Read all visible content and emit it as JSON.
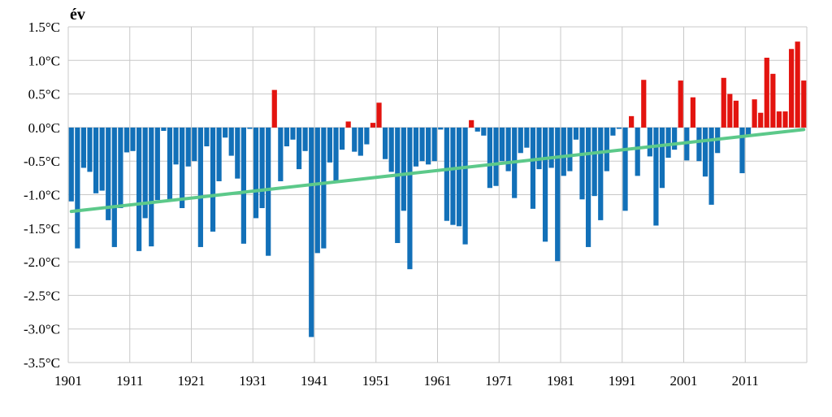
{
  "chart_data": {
    "type": "bar",
    "title": "év",
    "xlabel": "",
    "ylabel": "",
    "ylim": [
      -3.5,
      1.5
    ],
    "yticks": [
      1.5,
      1.0,
      0.5,
      0.0,
      -0.5,
      -1.0,
      -1.5,
      -2.0,
      -2.5,
      -3.0,
      -3.5
    ],
    "ytick_labels": [
      "1.5°C",
      "1.0°C",
      "0.5°C",
      "0.0°C",
      "-0.5°C",
      "-1.0°C",
      "-1.5°C",
      "-2.0°C",
      "-2.5°C",
      "-3.0°C",
      "-3.5°C"
    ],
    "xticks": [
      "1901",
      "1911",
      "1921",
      "1931",
      "1941",
      "1951",
      "1961",
      "1971",
      "1981",
      "1991",
      "2001",
      "2011"
    ],
    "grid": true,
    "x_start": 1901,
    "x_end": 2020,
    "positive_color": "#e3140f",
    "negative_color": "#1270b8",
    "trend_color": "#5cc98a",
    "trend": {
      "x": [
        1901,
        2020
      ],
      "y": [
        -1.25,
        -0.03
      ]
    },
    "values": [
      -1.1,
      -1.8,
      -0.6,
      -0.66,
      -0.98,
      -0.94,
      -1.38,
      -1.78,
      -1.2,
      -0.37,
      -0.35,
      -1.84,
      -1.35,
      -1.77,
      -1.08,
      -0.05,
      -1.08,
      -0.55,
      -1.2,
      -0.58,
      -0.5,
      -1.78,
      -0.28,
      -1.55,
      -0.8,
      -0.15,
      -0.42,
      -0.76,
      -1.73,
      -0.02,
      -1.35,
      -1.2,
      -1.91,
      0.56,
      -0.8,
      -0.28,
      -0.18,
      -0.62,
      -0.35,
      -3.12,
      -1.87,
      -1.8,
      -0.52,
      -0.8,
      -0.33,
      0.09,
      -0.36,
      -0.42,
      -0.25,
      0.07,
      0.37,
      -0.47,
      -0.66,
      -1.72,
      -1.24,
      -2.11,
      -0.58,
      -0.5,
      -0.55,
      -0.5,
      -0.03,
      -1.39,
      -1.45,
      -1.47,
      -1.74,
      0.11,
      -0.06,
      -0.12,
      -0.9,
      -0.87,
      -0.5,
      -0.65,
      -1.05,
      -0.38,
      -0.3,
      -1.21,
      -0.62,
      -1.7,
      -0.6,
      -1.99,
      -0.72,
      -0.65,
      -0.18,
      -1.07,
      -1.78,
      -1.02,
      -1.38,
      -0.65,
      -0.12,
      -0.02,
      -1.24,
      0.17,
      -0.72,
      0.71,
      -0.43,
      -1.46,
      -0.9,
      -0.45,
      -0.33,
      0.7,
      -0.49,
      0.45,
      -0.5,
      -0.73,
      -1.15,
      -0.38,
      0.74,
      0.5,
      0.4,
      -0.68,
      -0.12,
      0.42,
      0.22,
      1.04,
      0.8,
      0.24,
      0.24,
      1.17,
      1.28,
      0.7
    ]
  }
}
